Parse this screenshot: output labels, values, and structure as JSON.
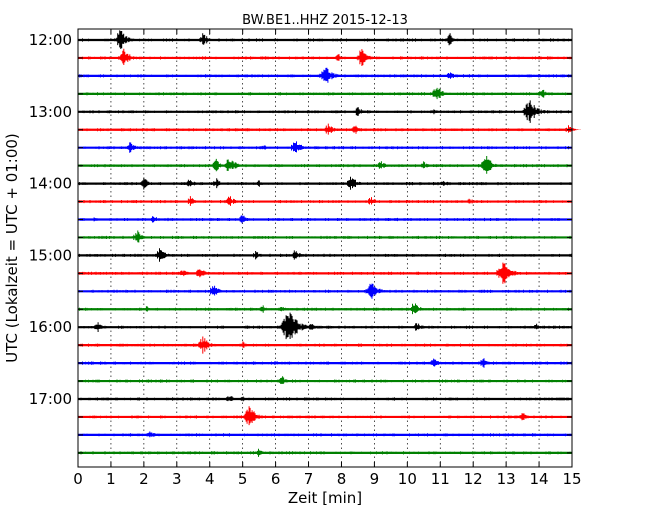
{
  "chart_data": {
    "type": "line",
    "title": "BW.BE1..HHZ 2015-12-13",
    "xlabel": "Zeit  [min]",
    "ylabel": "UTC (Lokalzeit = UTC + 01:00)",
    "xlim": [
      0,
      15
    ],
    "x_ticks": [
      "0",
      "1",
      "2",
      "3",
      "4",
      "5",
      "6",
      "7",
      "8",
      "9",
      "10",
      "11",
      "12",
      "13",
      "14",
      "15"
    ],
    "y_ticks": [
      "12:00",
      "13:00",
      "14:00",
      "15:00",
      "16:00",
      "17:00"
    ],
    "grid": true,
    "colors": [
      "#000000",
      "#ff0000",
      "#0000ff",
      "#008000"
    ],
    "traces": [
      {
        "start": "12:00",
        "events": [
          [
            1.3,
            12
          ],
          [
            3.8,
            8
          ],
          [
            11.3,
            7
          ]
        ]
      },
      {
        "start": "12:15",
        "events": [
          [
            1.4,
            10
          ],
          [
            7.9,
            5
          ],
          [
            8.6,
            10
          ]
        ]
      },
      {
        "start": "12:30",
        "events": [
          [
            7.5,
            12
          ],
          [
            11.3,
            6
          ]
        ]
      },
      {
        "start": "12:45",
        "events": [
          [
            10.9,
            9
          ],
          [
            14.1,
            6
          ]
        ]
      },
      {
        "start": "13:00",
        "events": [
          [
            8.5,
            6
          ],
          [
            10.8,
            4
          ],
          [
            13.7,
            14
          ]
        ]
      },
      {
        "start": "13:15",
        "events": [
          [
            7.6,
            7
          ],
          [
            8.4,
            6
          ],
          [
            14.9,
            5
          ]
        ]
      },
      {
        "start": "13:30",
        "events": [
          [
            1.6,
            7
          ],
          [
            5.6,
            5
          ],
          [
            6.6,
            9
          ]
        ]
      },
      {
        "start": "13:45",
        "events": [
          [
            4.2,
            7
          ],
          [
            4.6,
            10
          ],
          [
            9.2,
            6
          ],
          [
            10.5,
            5
          ],
          [
            12.4,
            11
          ]
        ]
      },
      {
        "start": "14:00",
        "events": [
          [
            2.0,
            7
          ],
          [
            3.4,
            6
          ],
          [
            4.2,
            6
          ],
          [
            5.5,
            4
          ],
          [
            8.3,
            9
          ],
          [
            11.1,
            5
          ]
        ]
      },
      {
        "start": "14:15",
        "events": [
          [
            3.4,
            6
          ],
          [
            4.6,
            7
          ],
          [
            8.9,
            6
          ],
          [
            11.9,
            4
          ]
        ]
      },
      {
        "start": "14:30",
        "events": [
          [
            0.5,
            3
          ],
          [
            2.3,
            5
          ],
          [
            5.0,
            6
          ]
        ]
      },
      {
        "start": "14:45",
        "events": [
          [
            1.8,
            8
          ],
          [
            3.8,
            3
          ]
        ]
      },
      {
        "start": "15:00",
        "events": [
          [
            2.5,
            9
          ],
          [
            5.4,
            5
          ],
          [
            6.6,
            7
          ]
        ]
      },
      {
        "start": "15:15",
        "events": [
          [
            3.2,
            6
          ],
          [
            3.7,
            7
          ],
          [
            12.9,
            14
          ]
        ]
      },
      {
        "start": "15:30",
        "events": [
          [
            4.1,
            8
          ],
          [
            8.9,
            12
          ]
        ]
      },
      {
        "start": "15:45",
        "events": [
          [
            2.1,
            4
          ],
          [
            5.6,
            5
          ],
          [
            6.2,
            4
          ],
          [
            10.2,
            8
          ]
        ]
      },
      {
        "start": "16:00",
        "events": [
          [
            0.6,
            6
          ],
          [
            6.4,
            18
          ],
          [
            7.1,
            5
          ],
          [
            10.3,
            6
          ],
          [
            13.9,
            5
          ]
        ]
      },
      {
        "start": "16:15",
        "events": [
          [
            3.8,
            10
          ],
          [
            5.0,
            4
          ]
        ]
      },
      {
        "start": "16:30",
        "events": [
          [
            6.0,
            3
          ],
          [
            10.8,
            7
          ],
          [
            12.3,
            7
          ]
        ]
      },
      {
        "start": "16:45",
        "events": [
          [
            6.2,
            6
          ]
        ]
      },
      {
        "start": "17:00",
        "events": [
          [
            4.6,
            6
          ],
          [
            5.0,
            3
          ]
        ]
      },
      {
        "start": "17:15",
        "events": [
          [
            5.2,
            12
          ],
          [
            13.5,
            6
          ]
        ]
      },
      {
        "start": "17:30",
        "events": [
          [
            2.2,
            6
          ]
        ]
      },
      {
        "start": "17:45",
        "events": [
          [
            5.5,
            6
          ]
        ]
      }
    ]
  }
}
